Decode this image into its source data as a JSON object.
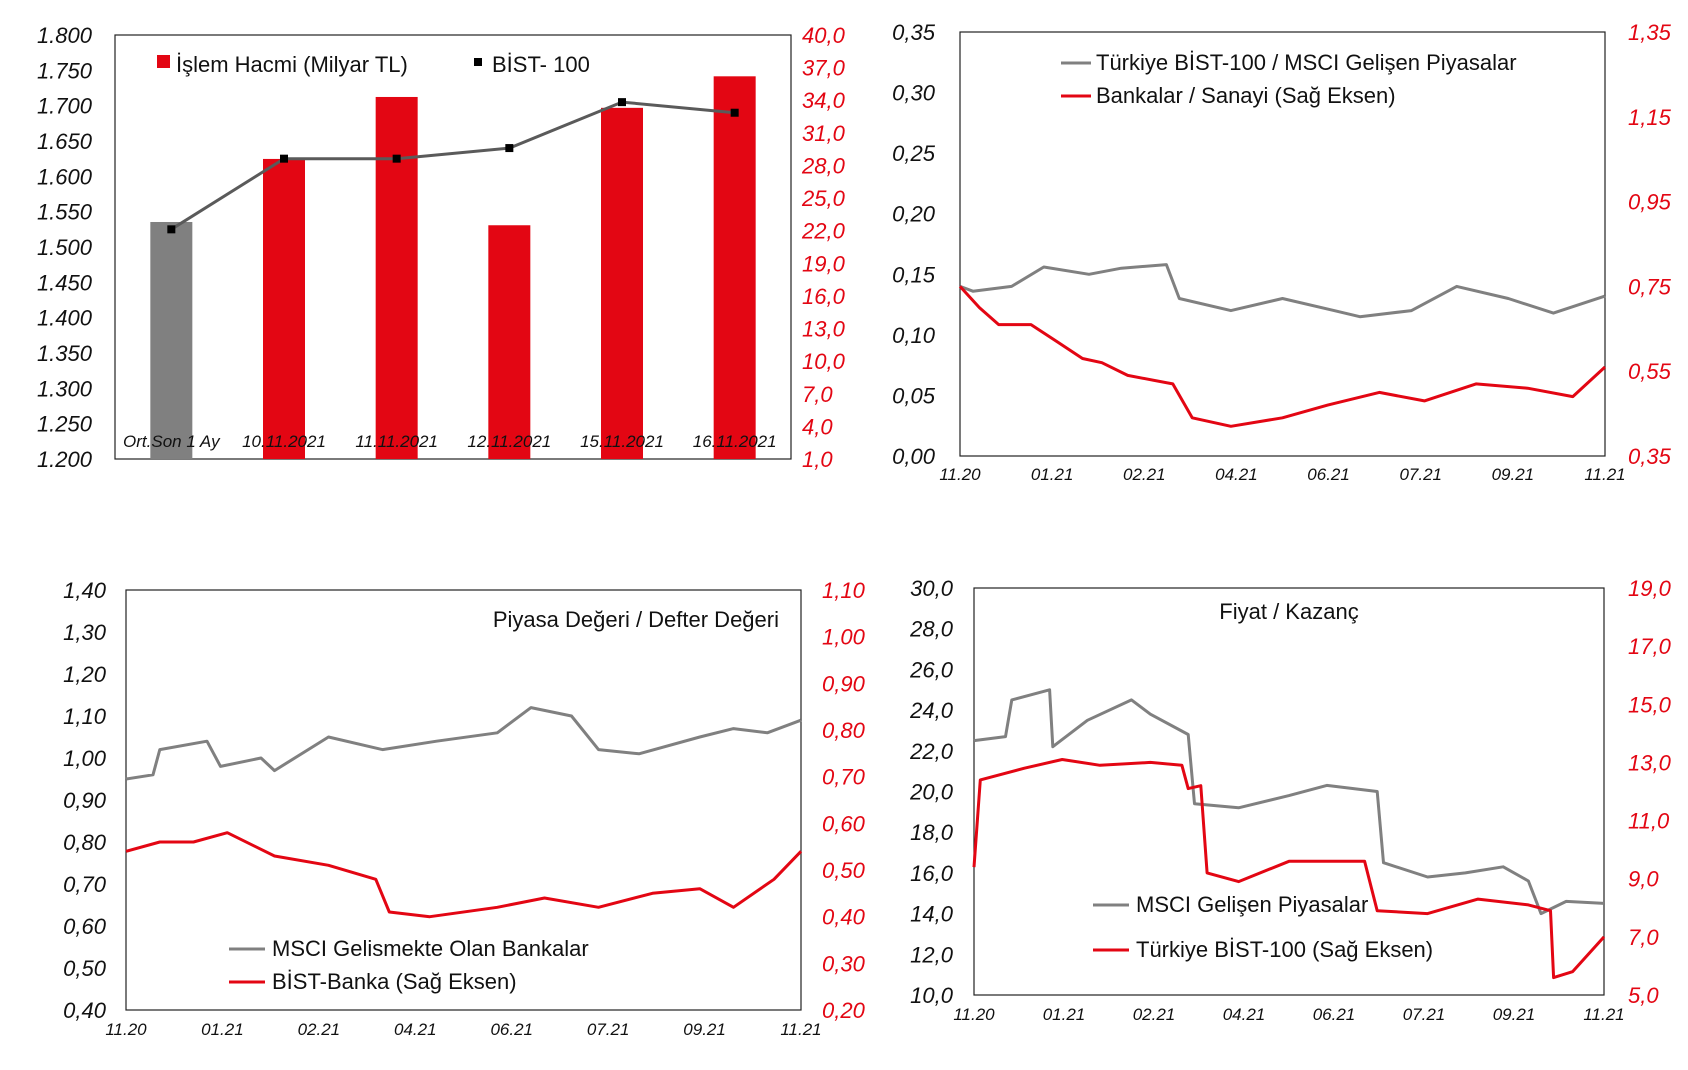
{
  "colors": {
    "red": "#e30613",
    "gray": "#808080",
    "line_gray": "#5a5a5a",
    "black": "#000000"
  },
  "chart_data": [
    {
      "type": "bar",
      "legend_position": "top",
      "categories": [
        "Ort.Son 1 Ay",
        "10.11.2021",
        "11.11.2021",
        "12.11.2021",
        "15.11.2021",
        "16.11.2021"
      ],
      "series": [
        {
          "name": "İşlem Hacmi (Milyar TL)",
          "axis": "right",
          "values": [
            22.8,
            28.6,
            34.3,
            22.5,
            33.3,
            36.2
          ],
          "bar_colors": [
            "#808080",
            "#e30613",
            "#e30613",
            "#e30613",
            "#e30613",
            "#e30613"
          ]
        },
        {
          "name": "BİST- 100",
          "axis": "left",
          "type": "line",
          "values": [
            1525,
            1625,
            1625,
            1640,
            1705,
            1690
          ]
        }
      ],
      "y_left": {
        "range": [
          1200,
          1800
        ],
        "ticks": [
          "1.200",
          "1.250",
          "1.300",
          "1.350",
          "1.400",
          "1.450",
          "1.500",
          "1.550",
          "1.600",
          "1.650",
          "1.700",
          "1.750",
          "1.800"
        ]
      },
      "y_right": {
        "range": [
          1,
          40
        ],
        "ticks": [
          "1,0",
          "4,0",
          "7,0",
          "10,0",
          "13,0",
          "16,0",
          "19,0",
          "22,0",
          "25,0",
          "28,0",
          "31,0",
          "34,0",
          "37,0",
          "40,0"
        ]
      }
    },
    {
      "type": "line",
      "legend_position": "top",
      "x_ticks": [
        "11.20",
        "01.21",
        "02.21",
        "04.21",
        "06.21",
        "07.21",
        "09.21",
        "11.21"
      ],
      "y_left": {
        "range": [
          0,
          0.35
        ],
        "ticks": [
          "0,00",
          "0,05",
          "0,10",
          "0,15",
          "0,20",
          "0,25",
          "0,30",
          "0,35"
        ]
      },
      "y_right": {
        "range": [
          0.35,
          1.35
        ],
        "ticks": [
          "0,35",
          "0,55",
          "0,75",
          "0,95",
          "1,15",
          "1,35"
        ]
      },
      "series": [
        {
          "name": "Türkiye BİST-100 / MSCI Gelişen Piyasalar",
          "axis": "left",
          "color": "#808080",
          "points": [
            [
              0,
              0.14
            ],
            [
              0.02,
              0.136
            ],
            [
              0.08,
              0.14
            ],
            [
              0.13,
              0.156
            ],
            [
              0.2,
              0.15
            ],
            [
              0.25,
              0.155
            ],
            [
              0.32,
              0.158
            ],
            [
              0.34,
              0.13
            ],
            [
              0.42,
              0.12
            ],
            [
              0.5,
              0.13
            ],
            [
              0.58,
              0.12
            ],
            [
              0.62,
              0.115
            ],
            [
              0.7,
              0.12
            ],
            [
              0.77,
              0.14
            ],
            [
              0.85,
              0.13
            ],
            [
              0.92,
              0.118
            ],
            [
              1,
              0.132
            ]
          ]
        },
        {
          "name": "Bankalar / Sanayi (Sağ Eksen)",
          "axis": "right",
          "color": "#e30613",
          "points": [
            [
              0,
              0.75
            ],
            [
              0.03,
              0.7
            ],
            [
              0.06,
              0.66
            ],
            [
              0.11,
              0.66
            ],
            [
              0.15,
              0.62
            ],
            [
              0.19,
              0.58
            ],
            [
              0.22,
              0.57
            ],
            [
              0.26,
              0.54
            ],
            [
              0.33,
              0.52
            ],
            [
              0.36,
              0.44
            ],
            [
              0.42,
              0.42
            ],
            [
              0.5,
              0.44
            ],
            [
              0.57,
              0.47
            ],
            [
              0.65,
              0.5
            ],
            [
              0.72,
              0.48
            ],
            [
              0.8,
              0.52
            ],
            [
              0.88,
              0.51
            ],
            [
              0.95,
              0.49
            ],
            [
              1,
              0.56
            ]
          ]
        }
      ]
    },
    {
      "type": "line",
      "title": "Piyasa Değeri / Defter Değeri",
      "legend_position": "bottom-left",
      "x_ticks": [
        "11.20",
        "01.21",
        "02.21",
        "04.21",
        "06.21",
        "07.21",
        "09.21",
        "11.21"
      ],
      "y_left": {
        "range": [
          0.4,
          1.4
        ],
        "ticks": [
          "0,40",
          "0,50",
          "0,60",
          "0,70",
          "0,80",
          "0,90",
          "1,00",
          "1,10",
          "1,20",
          "1,30",
          "1,40"
        ]
      },
      "y_right": {
        "range": [
          0.2,
          1.1
        ],
        "ticks": [
          "0,20",
          "0,30",
          "0,40",
          "0,50",
          "0,60",
          "0,70",
          "0,80",
          "0,90",
          "1,00",
          "1,10"
        ]
      },
      "series": [
        {
          "name": "MSCI Gelismekte Olan Bankalar",
          "axis": "left",
          "color": "#808080",
          "points": [
            [
              0,
              0.95
            ],
            [
              0.04,
              0.96
            ],
            [
              0.05,
              1.02
            ],
            [
              0.12,
              1.04
            ],
            [
              0.14,
              0.98
            ],
            [
              0.2,
              1.0
            ],
            [
              0.22,
              0.97
            ],
            [
              0.3,
              1.05
            ],
            [
              0.38,
              1.02
            ],
            [
              0.46,
              1.04
            ],
            [
              0.55,
              1.06
            ],
            [
              0.6,
              1.12
            ],
            [
              0.66,
              1.1
            ],
            [
              0.7,
              1.02
            ],
            [
              0.76,
              1.01
            ],
            [
              0.85,
              1.05
            ],
            [
              0.9,
              1.07
            ],
            [
              0.95,
              1.06
            ],
            [
              1,
              1.09
            ]
          ]
        },
        {
          "name": "BİST-Banka (Sağ Eksen)",
          "axis": "right",
          "color": "#e30613",
          "points": [
            [
              0,
              0.54
            ],
            [
              0.05,
              0.56
            ],
            [
              0.1,
              0.56
            ],
            [
              0.15,
              0.58
            ],
            [
              0.22,
              0.53
            ],
            [
              0.3,
              0.51
            ],
            [
              0.37,
              0.48
            ],
            [
              0.39,
              0.41
            ],
            [
              0.45,
              0.4
            ],
            [
              0.55,
              0.42
            ],
            [
              0.62,
              0.44
            ],
            [
              0.7,
              0.42
            ],
            [
              0.78,
              0.45
            ],
            [
              0.85,
              0.46
            ],
            [
              0.9,
              0.42
            ],
            [
              0.96,
              0.48
            ],
            [
              1,
              0.54
            ]
          ]
        }
      ]
    },
    {
      "type": "line",
      "title": "Fiyat / Kazanç",
      "legend_position": "bottom-center",
      "x_ticks": [
        "11.20",
        "01.21",
        "02.21",
        "04.21",
        "06.21",
        "07.21",
        "09.21",
        "11.21"
      ],
      "y_left": {
        "range": [
          10,
          30
        ],
        "ticks": [
          "10,0",
          "12,0",
          "14,0",
          "16,0",
          "18,0",
          "20,0",
          "22,0",
          "24,0",
          "26,0",
          "28,0",
          "30,0"
        ]
      },
      "y_right": {
        "range": [
          5,
          19
        ],
        "ticks": [
          "5,0",
          "7,0",
          "9,0",
          "11,0",
          "13,0",
          "15,0",
          "17,0",
          "19,0"
        ]
      },
      "series": [
        {
          "name": "MSCI Gelişen Piyasalar",
          "axis": "left",
          "color": "#808080",
          "points": [
            [
              0,
              22.5
            ],
            [
              0.05,
              22.7
            ],
            [
              0.06,
              24.5
            ],
            [
              0.12,
              25.0
            ],
            [
              0.125,
              22.2
            ],
            [
              0.18,
              23.5
            ],
            [
              0.25,
              24.5
            ],
            [
              0.28,
              23.8
            ],
            [
              0.34,
              22.8
            ],
            [
              0.35,
              19.4
            ],
            [
              0.42,
              19.2
            ],
            [
              0.5,
              19.8
            ],
            [
              0.56,
              20.3
            ],
            [
              0.64,
              20.0
            ],
            [
              0.65,
              16.5
            ],
            [
              0.72,
              15.8
            ],
            [
              0.78,
              16.0
            ],
            [
              0.84,
              16.3
            ],
            [
              0.88,
              15.6
            ],
            [
              0.9,
              14.0
            ],
            [
              0.94,
              14.6
            ],
            [
              1,
              14.5
            ]
          ]
        },
        {
          "name": "Türkiye BİST-100 (Sağ Eksen)",
          "axis": "right",
          "color": "#e30613",
          "points": [
            [
              0,
              9.4
            ],
            [
              0.01,
              12.4
            ],
            [
              0.08,
              12.8
            ],
            [
              0.14,
              13.1
            ],
            [
              0.2,
              12.9
            ],
            [
              0.28,
              13.0
            ],
            [
              0.33,
              12.9
            ],
            [
              0.34,
              12.1
            ],
            [
              0.36,
              12.2
            ],
            [
              0.37,
              9.2
            ],
            [
              0.42,
              8.9
            ],
            [
              0.5,
              9.6
            ],
            [
              0.56,
              9.6
            ],
            [
              0.62,
              9.6
            ],
            [
              0.64,
              7.9
            ],
            [
              0.72,
              7.8
            ],
            [
              0.8,
              8.3
            ],
            [
              0.88,
              8.1
            ],
            [
              0.915,
              7.9
            ],
            [
              0.92,
              5.6
            ],
            [
              0.95,
              5.8
            ],
            [
              1,
              7.0
            ]
          ]
        }
      ]
    }
  ]
}
